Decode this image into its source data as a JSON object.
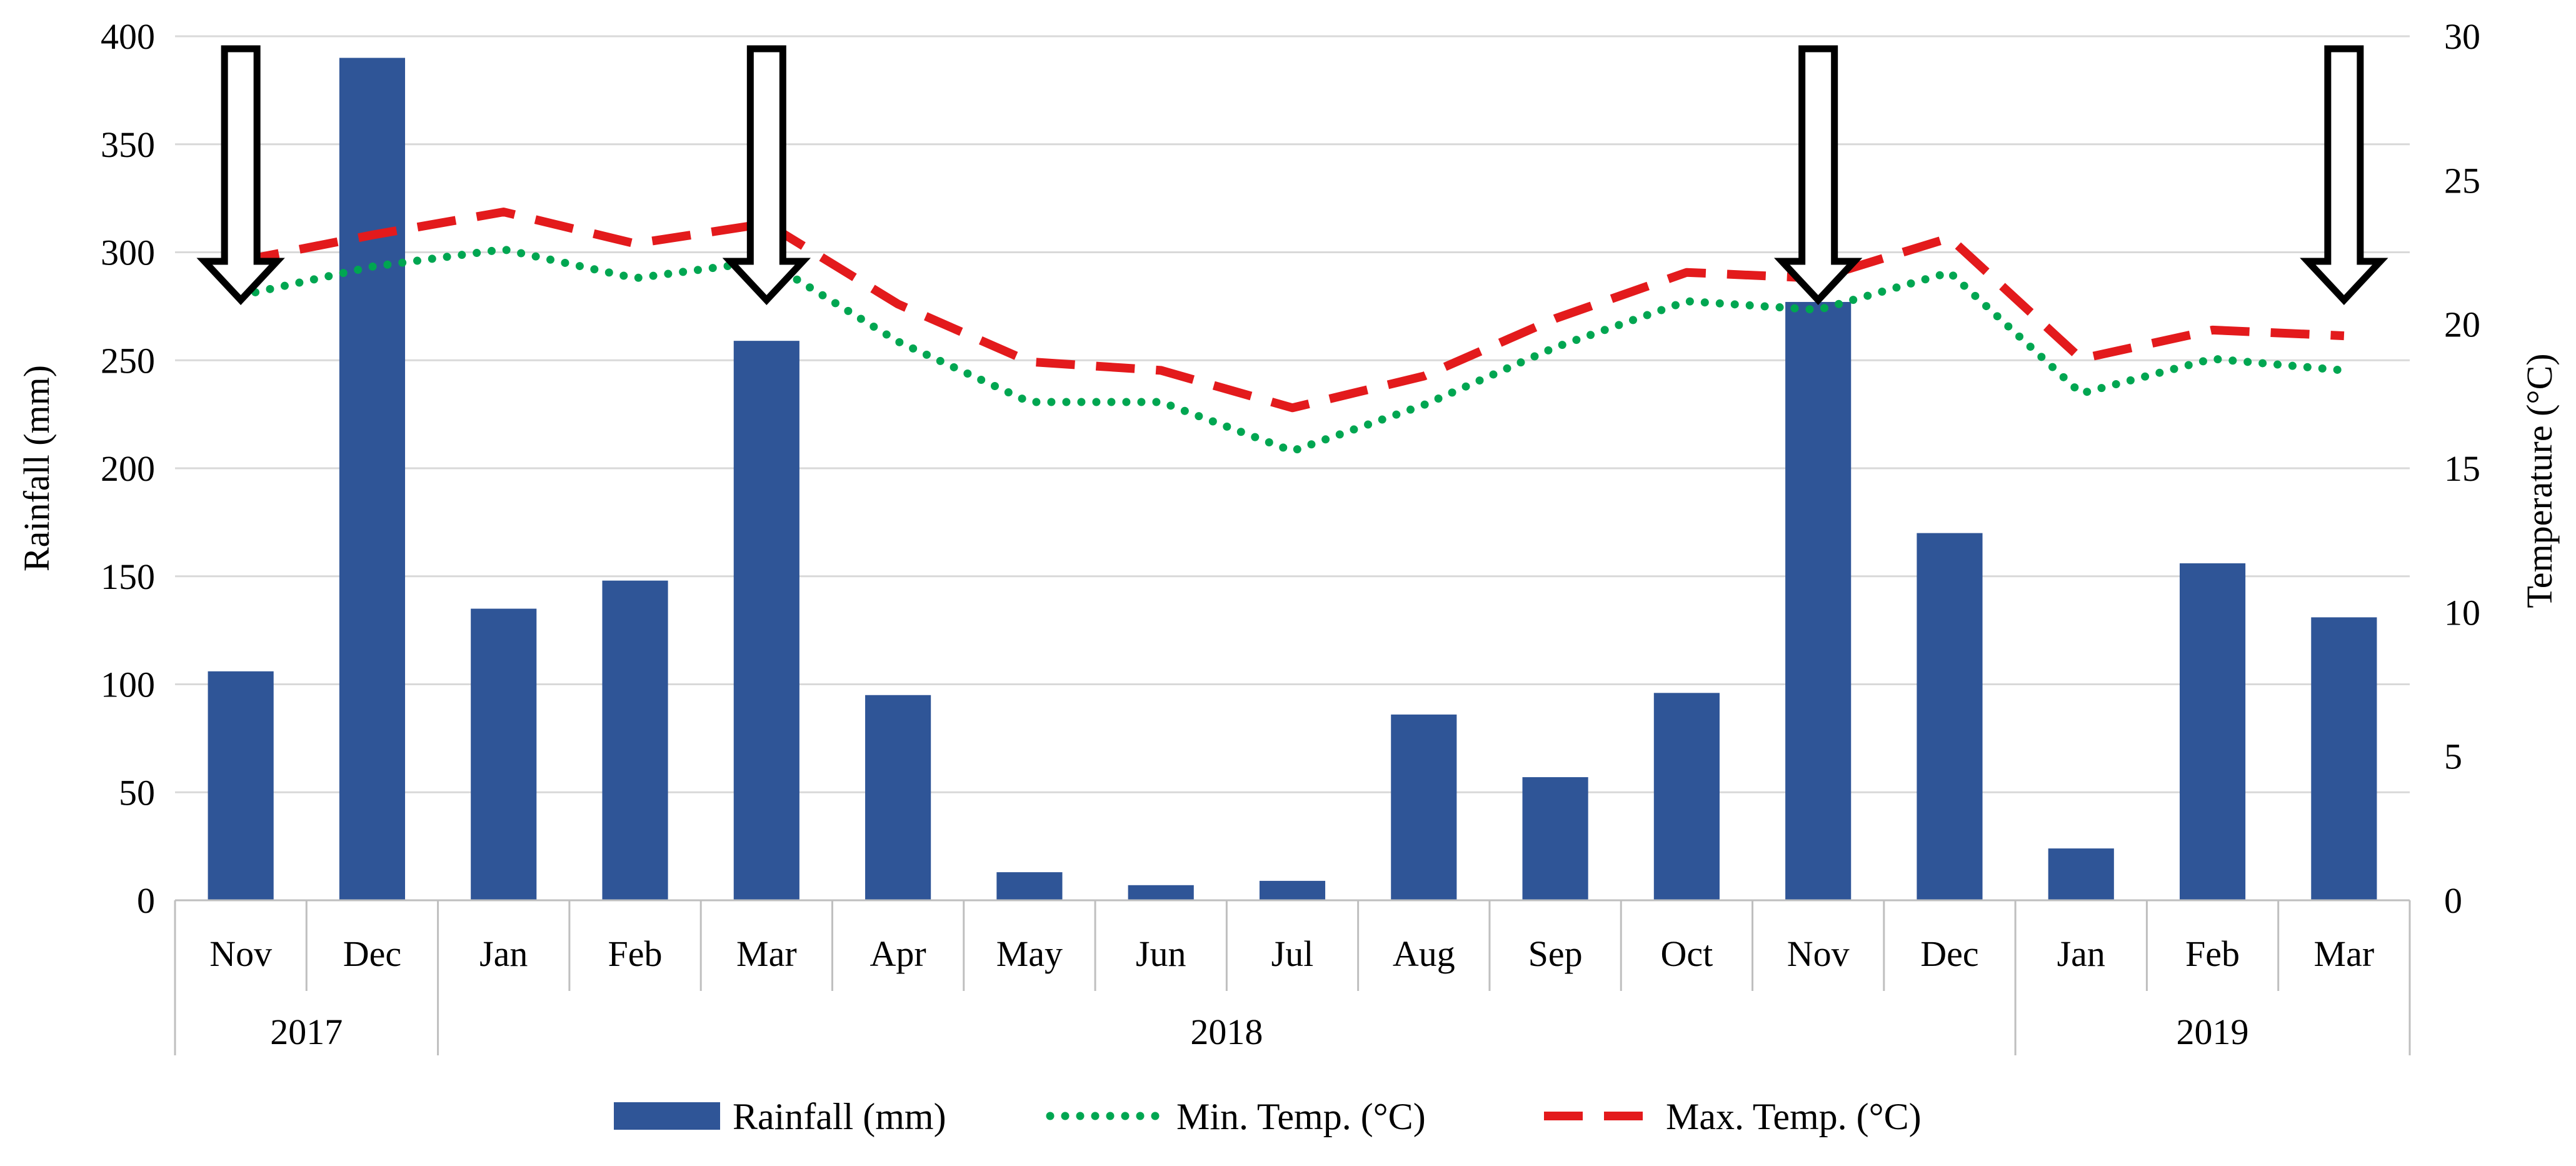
{
  "chart_data": {
    "type": "bar",
    "categories": [
      "Nov",
      "Dec",
      "Jan",
      "Feb",
      "Mar",
      "Apr",
      "May",
      "Jun",
      "Jul",
      "Aug",
      "Sep",
      "Oct",
      "Nov",
      "Dec",
      "Jan",
      "Feb",
      "Mar"
    ],
    "year_groups": [
      {
        "label": "2017",
        "start": 0,
        "count": 2
      },
      {
        "label": "2018",
        "start": 2,
        "count": 12
      },
      {
        "label": "2019",
        "start": 14,
        "count": 3
      }
    ],
    "series": [
      {
        "name": "Rainfall (mm)",
        "kind": "bar",
        "axis": "left",
        "color": "#2f5597",
        "values": [
          106,
          390,
          135,
          148,
          259,
          95,
          13,
          7,
          9,
          86,
          57,
          96,
          277,
          170,
          24,
          156,
          131
        ]
      },
      {
        "name": "Min. Temp. (°C)",
        "kind": "line",
        "style": "dotted",
        "axis": "right",
        "color": "#00a651",
        "values": [
          21.0,
          22.0,
          22.6,
          21.6,
          22.2,
          19.4,
          17.3,
          17.3,
          15.6,
          17.2,
          19.2,
          20.8,
          20.5,
          21.8,
          17.6,
          18.8,
          18.4
        ]
      },
      {
        "name": "Max. Temp. (°C)",
        "kind": "line",
        "style": "dashed",
        "axis": "right",
        "color": "#e31a1c",
        "values": [
          22.2,
          23.1,
          23.9,
          22.8,
          23.5,
          20.7,
          18.7,
          18.4,
          17.1,
          18.2,
          20.2,
          21.8,
          21.6,
          23.0,
          18.8,
          19.8,
          19.6
        ]
      }
    ],
    "arrow_markers": [
      0,
      4,
      12,
      16
    ],
    "left_axis": {
      "title": "Rainfall (mm)",
      "min": 0,
      "max": 400,
      "step": 50,
      "ticks": [
        "0",
        "50",
        "100",
        "150",
        "200",
        "250",
        "300",
        "350",
        "400"
      ]
    },
    "right_axis": {
      "title": "Temperature (°C)",
      "min": 0,
      "max": 30,
      "step": 5,
      "ticks": [
        "0",
        "5",
        "10",
        "15",
        "20",
        "25",
        "30"
      ]
    },
    "grid": true,
    "legend_position": "bottom"
  }
}
